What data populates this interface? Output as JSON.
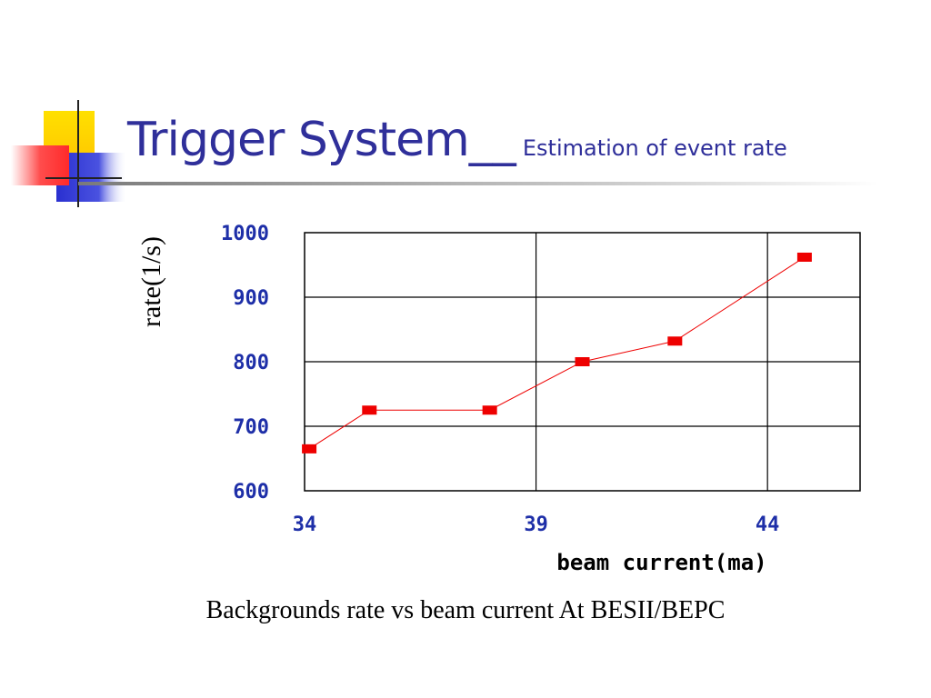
{
  "slide": {
    "title_main": "Trigger System",
    "title_sub": "Estimation of event rate",
    "caption": "Backgrounds rate vs beam current At BESII/BEPC"
  },
  "colors": {
    "title": "#2f2f9a",
    "axis_tick_labels": "#1e2fa8",
    "series": "#ee0000",
    "deco_yellow": "#ffd400",
    "deco_blue": "#2e36d6",
    "deco_red": "#ff3333"
  },
  "chart_data": {
    "type": "line",
    "title": "",
    "xlabel": "beam current(ma)",
    "ylabel": "rate(1/s)",
    "xlim": [
      34,
      46
    ],
    "ylim": [
      600,
      1000
    ],
    "x_ticks": [
      "34",
      "39",
      "44"
    ],
    "y_ticks": [
      "1000",
      "900",
      "800",
      "700",
      "600"
    ],
    "x_gridlines": [
      39,
      44
    ],
    "y_gridlines": [
      700,
      800,
      900
    ],
    "grid": true,
    "marker": "square",
    "series": [
      {
        "x": [
          34.1,
          35.4,
          38.0,
          40.0,
          42.0,
          44.8
        ],
        "y": [
          665,
          725,
          725,
          800,
          832,
          962
        ]
      }
    ]
  }
}
